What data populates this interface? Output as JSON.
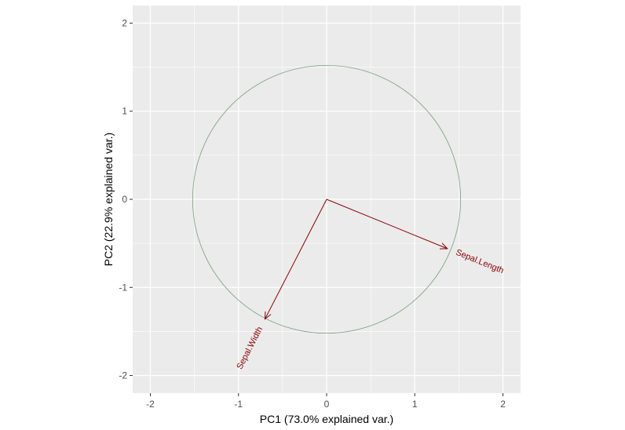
{
  "chart_data": {
    "type": "scatter",
    "subtype": "pca-biplot",
    "title": "",
    "xlabel": "PC1 (73.0% explained var.)",
    "ylabel": "PC2 (22.9% explained var.)",
    "xlim": [
      -2.2,
      2.2
    ],
    "ylim": [
      -2.2,
      2.2
    ],
    "x_ticks": [
      -2,
      -1,
      0,
      1,
      2
    ],
    "y_ticks": [
      -2,
      -1,
      0,
      1,
      2
    ],
    "x_tick_labels": [
      "-2",
      "-1",
      "0",
      "1",
      "2"
    ],
    "y_tick_labels": [
      "-2",
      "-1",
      "0",
      "1",
      "2"
    ],
    "grid": true,
    "correlation_circle": {
      "radius": 1.52
    },
    "arrows": [
      {
        "label": "Sepal.Length",
        "x": 1.37,
        "y": -0.56
      },
      {
        "label": "Sepal.Width",
        "x": -0.7,
        "y": -1.36
      }
    ],
    "colors": {
      "panel": "#ebebeb",
      "grid": "#ffffff",
      "arrow": "#8b0000",
      "circle": "#7a9f7a",
      "tick": "#4d4d4d"
    }
  }
}
